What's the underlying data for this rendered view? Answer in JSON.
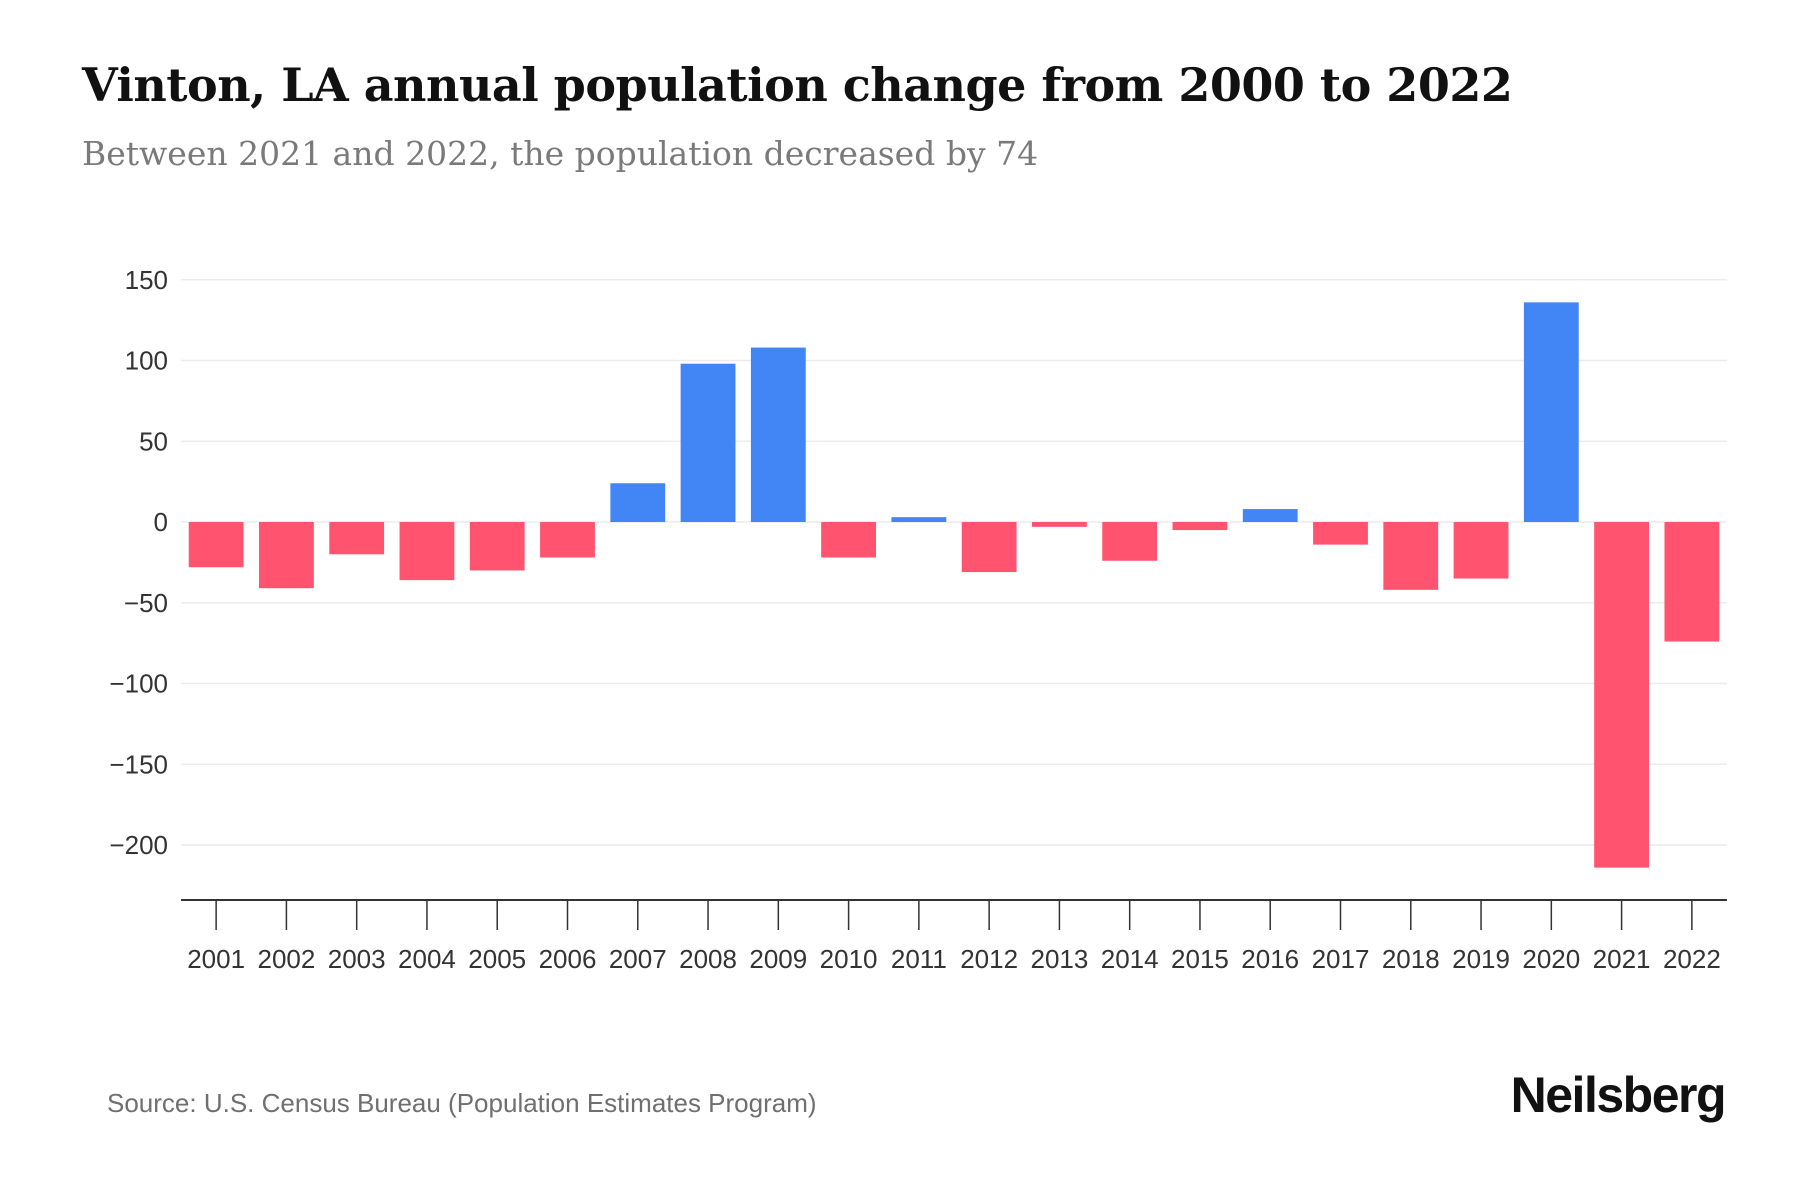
{
  "header": {
    "title": "Vinton, LA annual population change from 2000 to 2022",
    "subtitle": "Between 2021 and 2022, the population decreased by 74"
  },
  "footer": {
    "source": "Source: U.S. Census Bureau (Population Estimates Program)",
    "logo": "Neilsberg"
  },
  "colors": {
    "positive": "#4285F4",
    "negative": "#FF5370",
    "grid": "#ececec",
    "axis": "#333333"
  },
  "chart_data": {
    "type": "bar",
    "title": "Vinton, LA annual population change from 2000 to 2022",
    "subtitle": "Between 2021 and 2022, the population decreased by 74",
    "xlabel": "",
    "ylabel": "",
    "categories": [
      "2001",
      "2002",
      "2003",
      "2004",
      "2005",
      "2006",
      "2007",
      "2008",
      "2009",
      "2010",
      "2011",
      "2012",
      "2013",
      "2014",
      "2015",
      "2016",
      "2017",
      "2018",
      "2019",
      "2020",
      "2021",
      "2022"
    ],
    "values": [
      -28,
      -41,
      -20,
      -36,
      -30,
      -22,
      24,
      98,
      108,
      -22,
      3,
      -31,
      -3,
      -24,
      -5,
      8,
      -14,
      -42,
      -35,
      136,
      -214,
      -74
    ],
    "ylim": [
      -235,
      150
    ],
    "yticks": [
      150,
      100,
      50,
      0,
      -50,
      -100,
      -150,
      -200
    ],
    "ytick_labels": [
      "150",
      "100",
      "50",
      "0",
      "−50",
      "−100",
      "−150",
      "−200"
    ],
    "grid": true,
    "legend": "none",
    "color_rule": "blue for increase, red for decrease"
  }
}
